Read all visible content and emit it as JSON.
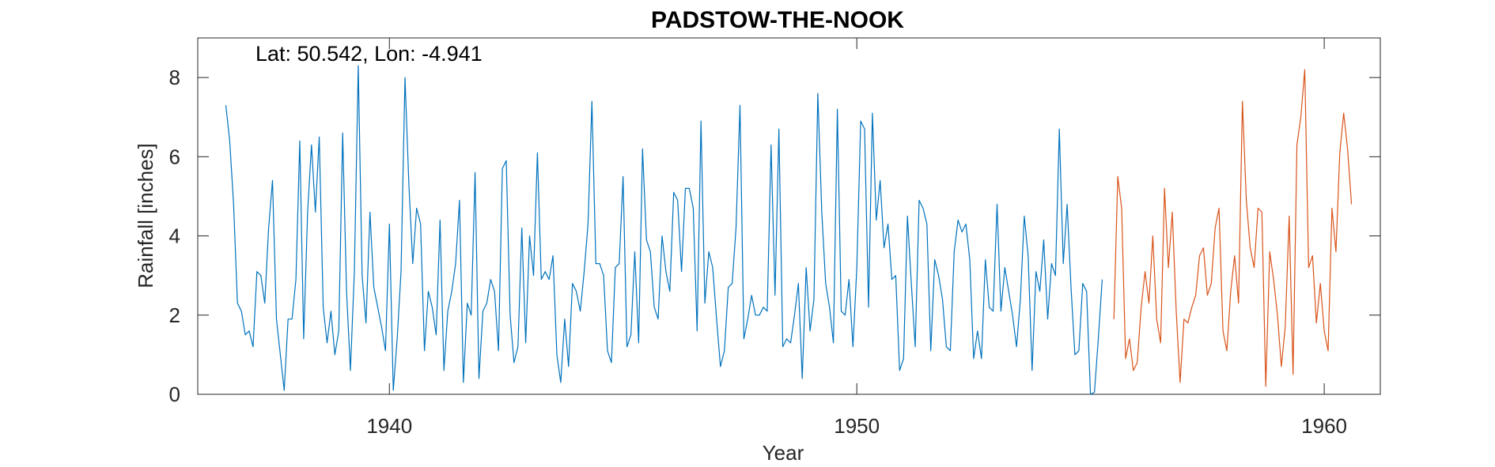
{
  "chart_data": {
    "type": "line",
    "title": "PADSTOW-THE-NOOK",
    "xlabel": "Year",
    "ylabel": "Rainfall [inches]",
    "annotation": "Lat: 50.542, Lon: -4.941",
    "xlim": [
      1935.9,
      1961.2
    ],
    "ylim": [
      0,
      9
    ],
    "xticks": [
      1940,
      1950,
      1960
    ],
    "yticks": [
      0,
      2,
      4,
      6,
      8
    ],
    "grid": false,
    "series": [
      {
        "color": "#0072BD",
        "x_start": 1936.5,
        "x_step": 0.083333,
        "values": [
          7.3,
          6.4,
          4.8,
          2.3,
          2.1,
          1.5,
          1.6,
          1.2,
          3.1,
          3.0,
          2.3,
          4.2,
          5.4,
          1.9,
          1.0,
          0.1,
          1.9,
          1.9,
          2.9,
          6.4,
          1.4,
          4.6,
          6.3,
          4.6,
          6.5,
          2.2,
          1.3,
          2.1,
          1.0,
          1.6,
          6.6,
          2.6,
          0.6,
          3.1,
          8.3,
          3.0,
          1.8,
          4.6,
          2.7,
          2.2,
          1.7,
          1.1,
          4.3,
          0.1,
          1.4,
          3.1,
          8.0,
          5.3,
          3.3,
          4.7,
          4.3,
          1.1,
          2.6,
          2.2,
          1.5,
          4.4,
          0.6,
          2.1,
          2.6,
          3.3,
          4.9,
          0.3,
          2.3,
          2.0,
          5.6,
          0.4,
          2.1,
          2.3,
          2.9,
          2.6,
          1.1,
          5.7,
          5.9,
          2.0,
          0.8,
          1.2,
          4.2,
          1.3,
          4.0,
          3.0,
          6.1,
          2.9,
          3.1,
          2.9,
          3.5,
          1.0,
          0.3,
          1.9,
          0.7,
          2.8,
          2.6,
          2.1,
          3.1,
          4.3,
          7.4,
          3.3,
          3.3,
          3.0,
          1.1,
          0.8,
          3.2,
          3.3,
          5.5,
          1.2,
          1.5,
          3.6,
          1.3,
          6.2,
          3.9,
          3.6,
          2.2,
          1.9,
          4.0,
          3.1,
          2.6,
          5.1,
          4.9,
          3.1,
          5.2,
          5.2,
          4.7,
          1.6,
          6.9,
          2.3,
          3.6,
          3.2,
          1.9,
          0.7,
          1.1,
          2.7,
          2.8,
          4.2,
          7.3,
          1.4,
          1.9,
          2.5,
          2.0,
          2.0,
          2.2,
          2.1,
          6.3,
          2.5,
          6.7,
          1.2,
          1.4,
          1.3,
          2.0,
          2.8,
          0.4,
          3.2,
          1.6,
          2.4,
          7.6,
          4.6,
          2.8,
          2.2,
          1.3,
          7.2,
          2.1,
          2.0,
          2.9,
          1.2,
          3.2,
          6.9,
          6.7,
          2.2,
          7.1,
          4.4,
          5.4,
          3.7,
          4.3,
          2.9,
          3.0,
          0.6,
          0.9,
          4.5,
          2.8,
          1.2,
          4.9,
          4.7,
          4.3,
          1.1,
          3.4,
          3.0,
          2.4,
          1.2,
          1.1,
          3.6,
          4.4,
          4.1,
          4.3,
          3.4,
          0.9,
          1.6,
          0.9,
          3.4,
          2.2,
          2.1,
          4.8,
          2.1,
          3.2,
          2.6,
          2.0,
          1.2,
          2.4,
          4.5,
          3.5,
          0.6,
          3.1,
          2.6,
          3.9,
          1.9,
          3.3,
          3.0,
          6.7,
          3.3,
          4.8,
          2.7,
          1.0,
          1.1,
          2.8,
          2.6,
          0.0,
          0.05,
          1.4,
          2.9
        ]
      },
      {
        "color": "#D95319",
        "x_start": 1955.5,
        "x_step": 0.083333,
        "values": [
          1.9,
          5.5,
          4.7,
          0.9,
          1.4,
          0.6,
          0.8,
          2.2,
          3.1,
          2.3,
          4.0,
          1.9,
          1.3,
          5.2,
          3.2,
          4.6,
          2.1,
          0.3,
          1.9,
          1.8,
          2.2,
          2.5,
          3.5,
          3.7,
          2.5,
          2.8,
          4.2,
          4.7,
          1.6,
          1.1,
          2.6,
          3.5,
          2.3,
          7.4,
          4.9,
          3.7,
          3.2,
          4.7,
          4.6,
          0.2,
          3.6,
          2.9,
          2.0,
          0.7,
          1.7,
          4.5,
          0.5,
          6.3,
          7.0,
          8.2,
          3.2,
          3.5,
          1.8,
          2.8,
          1.6,
          1.1,
          4.7,
          3.6,
          6.1,
          7.1,
          6.2,
          4.8
        ]
      }
    ]
  }
}
